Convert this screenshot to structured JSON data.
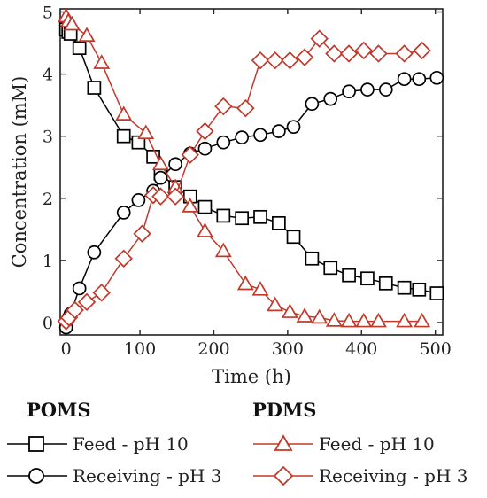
{
  "chart_data": {
    "type": "line",
    "xlabel": "Time (h)",
    "ylabel": "Concentration (mM)",
    "xlim": [
      -8,
      510
    ],
    "ylim": [
      -0.2,
      5.05
    ],
    "xticks": [
      0,
      100,
      200,
      300,
      400,
      500
    ],
    "yticks": [
      0,
      1,
      2,
      3,
      4,
      5
    ],
    "grid": false,
    "series": [
      {
        "key": "poms_feed",
        "marker": "square",
        "color": "#000000",
        "x": [
          0,
          3,
          6,
          18,
          38,
          78,
          98,
          118,
          128,
          148,
          168,
          188,
          213,
          238,
          263,
          288,
          308,
          333,
          358,
          383,
          408,
          433,
          458,
          478,
          502
        ],
        "y": [
          4.72,
          4.68,
          4.65,
          4.42,
          3.78,
          3.0,
          2.9,
          2.67,
          2.4,
          2.18,
          2.03,
          1.86,
          1.72,
          1.68,
          1.7,
          1.6,
          1.38,
          1.03,
          0.88,
          0.76,
          0.71,
          0.63,
          0.56,
          0.53,
          0.47
        ]
      },
      {
        "key": "poms_receiving",
        "marker": "circle",
        "color": "#000000",
        "x": [
          0,
          3,
          6,
          18,
          38,
          78,
          98,
          118,
          128,
          148,
          168,
          188,
          213,
          238,
          263,
          288,
          308,
          333,
          358,
          383,
          408,
          433,
          458,
          478,
          502
        ],
        "y": [
          -0.08,
          0.07,
          0.14,
          0.55,
          1.13,
          1.77,
          1.97,
          2.12,
          2.33,
          2.55,
          2.72,
          2.8,
          2.9,
          2.98,
          3.02,
          3.08,
          3.15,
          3.52,
          3.6,
          3.72,
          3.75,
          3.75,
          3.92,
          3.92,
          3.94
        ]
      },
      {
        "key": "pdms_feed",
        "marker": "triangle",
        "color": "#c0392b",
        "x": [
          0,
          3,
          8,
          28,
          48,
          78,
          108,
          128,
          148,
          168,
          188,
          213,
          243,
          263,
          283,
          303,
          323,
          343,
          363,
          383,
          403,
          423,
          458,
          482
        ],
        "y": [
          4.93,
          4.85,
          4.8,
          4.62,
          4.18,
          3.35,
          3.05,
          2.55,
          2.18,
          1.87,
          1.47,
          1.15,
          0.62,
          0.53,
          0.28,
          0.17,
          0.1,
          0.08,
          0.03,
          0.02,
          0.02,
          0.02,
          0.02,
          0.02
        ]
      },
      {
        "key": "pdms_receiving",
        "marker": "diamond",
        "color": "#c0392b",
        "x": [
          0,
          4,
          12,
          28,
          48,
          78,
          103,
          118,
          128,
          148,
          168,
          188,
          213,
          243,
          263,
          283,
          303,
          323,
          343,
          363,
          383,
          403,
          423,
          458,
          482
        ],
        "y": [
          0.02,
          0.08,
          0.2,
          0.33,
          0.48,
          1.03,
          1.43,
          2.05,
          2.03,
          2.03,
          2.7,
          3.08,
          3.48,
          3.45,
          4.22,
          4.22,
          4.22,
          4.27,
          4.57,
          4.33,
          4.33,
          4.38,
          4.33,
          4.33,
          4.38
        ]
      }
    ]
  },
  "legend": {
    "poms_title": "POMS",
    "pdms_title": "PDMS",
    "poms_feed_label": "Feed - pH 10",
    "poms_receiving_label": "Receiving - pH 3",
    "pdms_feed_label": "Feed - pH 10",
    "pdms_receiving_label": "Receiving - pH 3"
  }
}
